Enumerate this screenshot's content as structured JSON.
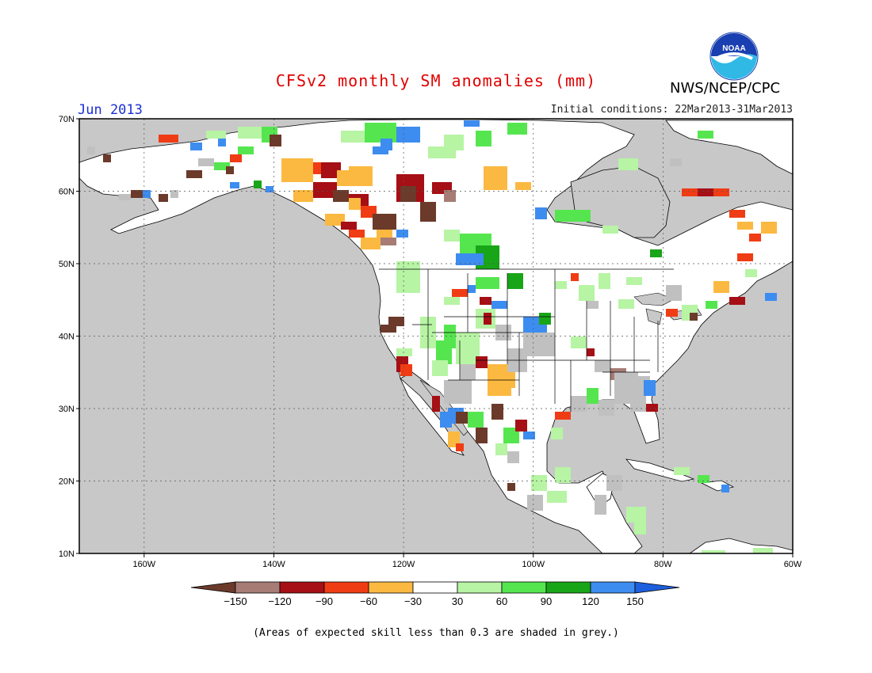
{
  "header": {
    "title": "CFSv2 monthly SM anomalies (mm)",
    "title_color": "#e00000",
    "period": "Jun 2013",
    "period_color": "#1a2fd6",
    "initial_conditions": "Initial conditions: 22Mar2013-31Mar2013",
    "organization": "NWS/NCEP/CPC",
    "logo_text": "NOAA"
  },
  "map": {
    "lat_labels": [
      "70N",
      "60N",
      "50N",
      "40N",
      "30N",
      "20N",
      "10N"
    ],
    "lon_labels": [
      "160W",
      "140W",
      "120W",
      "100W",
      "80W",
      "60W"
    ],
    "ocean_color": "#c8c8c8",
    "land_color": "#ffffff",
    "skill_mask_color": "#c0c0c0"
  },
  "colorbar": {
    "labels": [
      "−150",
      "−120",
      "−90",
      "−60",
      "−30",
      "30",
      "60",
      "90",
      "120",
      "150"
    ],
    "colors": [
      "#6b3a2a",
      "#a67c74",
      "#a50f15",
      "#f03c14",
      "#fbb941",
      "#ffffff",
      "#b7f4a4",
      "#55e64f",
      "#18a518",
      "#3d8cf0",
      "#1d5fdc"
    ]
  },
  "footnote": "(Areas of expected skill less than 0.3 are shaded in grey.)"
}
